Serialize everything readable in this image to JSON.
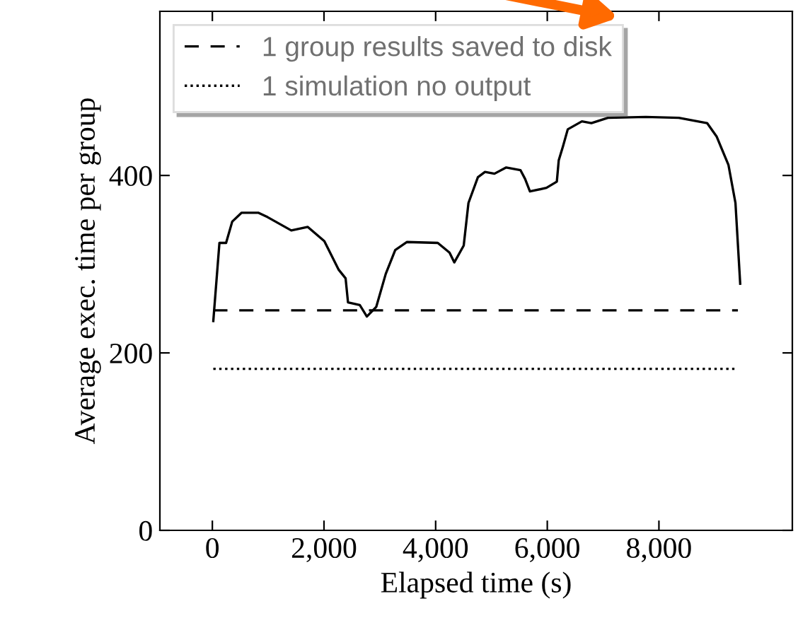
{
  "chart_data": {
    "type": "line",
    "xlabel": "Elapsed time (s)",
    "ylabel": "Average exec. time per group",
    "xlim": [
      -940,
      10390
    ],
    "ylim": [
      0,
      585
    ],
    "xticks": [
      {
        "value": 0,
        "label": "0"
      },
      {
        "value": 2000,
        "label": "2,000"
      },
      {
        "value": 4000,
        "label": "4,000"
      },
      {
        "value": 6000,
        "label": "6,000"
      },
      {
        "value": 8000,
        "label": "8,000"
      }
    ],
    "yticks": [
      0,
      200,
      400
    ],
    "grid": false,
    "legend": "top left",
    "series": [
      {
        "color": "#000000",
        "line_style": "solid",
        "x": [
          17,
          127,
          246,
          356,
          525,
          821,
          990,
          1414,
          1710,
          2006,
          2260,
          2387,
          2430,
          2641,
          2768,
          2937,
          3106,
          3276,
          3487,
          4038,
          4249,
          4334,
          4503,
          4588,
          4757,
          4884,
          5054,
          5265,
          5519,
          5603,
          5689,
          5985,
          6171,
          6205,
          6282,
          6367,
          6620,
          6790,
          7086,
          7763,
          8356,
          8863,
          9033,
          9245,
          9371,
          9456
        ],
        "values": [
          236,
          324,
          324,
          348,
          358,
          358,
          353,
          338,
          342,
          326,
          294,
          284,
          257,
          254,
          241,
          252,
          289,
          316,
          325,
          324,
          313,
          302,
          321,
          369,
          398,
          404,
          402,
          409,
          406,
          396,
          382,
          386,
          393,
          417,
          433,
          452,
          461,
          459,
          465,
          466,
          465,
          459,
          444,
          412,
          369,
          278
        ]
      },
      {
        "name": "1 group results saved to disk",
        "color": "#000000",
        "line_style": "dashed",
        "x": [
          17,
          9415
        ],
        "values": [
          248,
          248
        ]
      },
      {
        "name": "1 simulation no output",
        "color": "#000000",
        "line_style": "dotted",
        "x": [
          17,
          9415
        ],
        "values": [
          182,
          182
        ]
      }
    ]
  }
}
